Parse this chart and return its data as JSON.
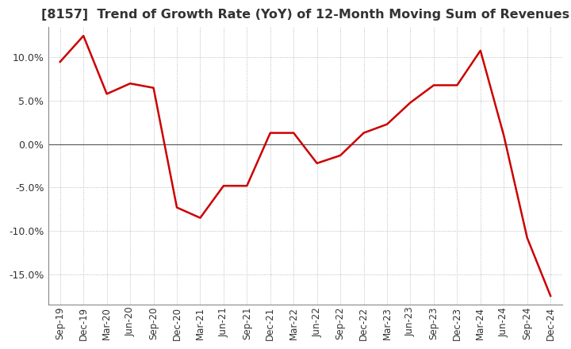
{
  "title": "[8157]  Trend of Growth Rate (YoY) of 12-Month Moving Sum of Revenues",
  "title_fontsize": 11.5,
  "line_color": "#cc0000",
  "background_color": "#ffffff",
  "plot_bg_color": "#ffffff",
  "grid_color": "#aaaaaa",
  "ylim": [
    -0.185,
    0.135
  ],
  "yticks": [
    -0.15,
    -0.1,
    -0.05,
    0.0,
    0.05,
    0.1
  ],
  "labels": [
    "Sep-19",
    "Dec-19",
    "Mar-20",
    "Jun-20",
    "Sep-20",
    "Dec-20",
    "Mar-21",
    "Jun-21",
    "Sep-21",
    "Dec-21",
    "Mar-22",
    "Jun-22",
    "Sep-22",
    "Dec-22",
    "Mar-23",
    "Jun-23",
    "Sep-23",
    "Dec-23",
    "Mar-24",
    "Jun-24",
    "Sep-24",
    "Dec-24"
  ],
  "values": [
    0.095,
    0.125,
    0.058,
    0.07,
    0.065,
    -0.073,
    -0.085,
    -0.048,
    -0.048,
    0.013,
    0.013,
    -0.022,
    -0.013,
    0.013,
    0.023,
    0.048,
    0.068,
    0.068,
    0.108,
    0.01,
    -0.108,
    -0.175
  ]
}
